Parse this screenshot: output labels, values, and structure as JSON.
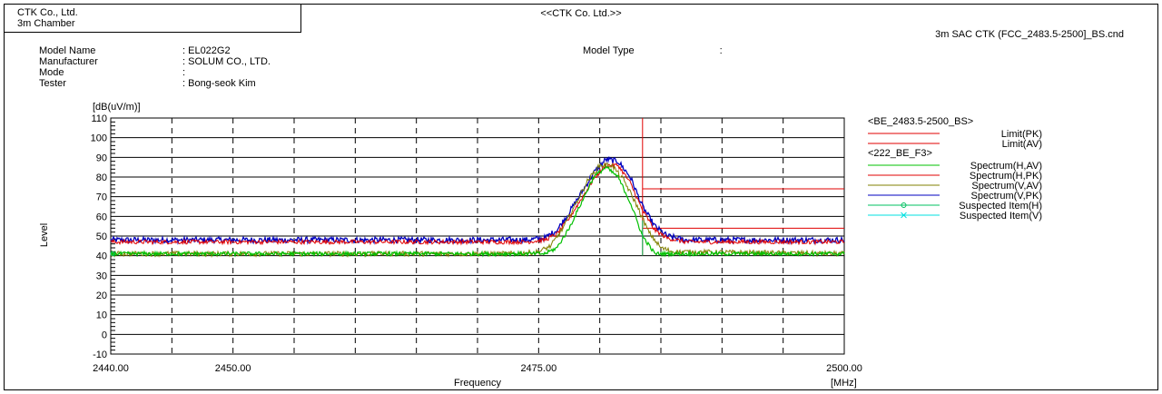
{
  "header": {
    "company": "CTK Co., Ltd.",
    "chamber": "3m Chamber",
    "title": "<<CTK Co. Ltd.>>",
    "file": "3m SAC CTK (FCC_2483.5-2500]_BS.cnd"
  },
  "info": {
    "rows": [
      {
        "label": "Model Name",
        "value": ": EL022G2"
      },
      {
        "label": "Manufacturer",
        "value": ": SOLUM CO., LTD."
      },
      {
        "label": "Mode",
        "value": ":"
      },
      {
        "label": "Tester",
        "value": ": Bong-seok Kim"
      }
    ],
    "model_type_label": "Model Type",
    "model_type_value": ":"
  },
  "colors": {
    "limit": "#e00000",
    "spectrum_h_av": "#00c000",
    "spectrum_h_pk": "#e00000",
    "spectrum_v_av": "#808000",
    "spectrum_v_pk": "#0000c0",
    "suspected_h": "#00c060",
    "suspected_v": "#00e0e0"
  },
  "chart_data": {
    "type": "line",
    "xlabel": "Frequency",
    "x_unit": "[MHz]",
    "ylabel": "Level",
    "y_unit": "[dB(uV/m)]",
    "xlim": [
      2440,
      2500
    ],
    "ylim": [
      -10,
      110
    ],
    "x_tick_labels": [
      {
        "value": 2440,
        "label": "2440.00"
      },
      {
        "value": 2450,
        "label": "2450.00"
      },
      {
        "value": 2475,
        "label": "2475.00"
      },
      {
        "value": 2500,
        "label": "2500.00"
      }
    ],
    "y_ticks": [
      -10,
      0,
      10,
      20,
      30,
      40,
      50,
      60,
      70,
      80,
      90,
      100,
      110
    ],
    "grid": true,
    "legend_position": "right",
    "legend_groups": [
      {
        "title": "<BE_2483.5-2500_BS>",
        "entries": [
          "Limit(PK)",
          "Limit(AV)"
        ]
      },
      {
        "title": "<222_BE_F3>",
        "entries": [
          "Spectrum(H,AV)",
          "Spectrum(H,PK)",
          "Spectrum(V,AV)",
          "Spectrum(V,PK)",
          "Suspected Item(H)",
          "Suspected Item(V)"
        ]
      }
    ],
    "series": [
      {
        "name": "Limit(PK)",
        "x": [
          2483.5,
          2500
        ],
        "y": [
          74,
          74
        ]
      },
      {
        "name": "Limit(AV)",
        "x": [
          2483.5,
          2500
        ],
        "y": [
          54,
          54
        ]
      },
      {
        "name": "Spectrum(V,PK)",
        "x": [
          2440,
          2474,
          2475.5,
          2476.5,
          2477.5,
          2478.5,
          2479.5,
          2480.5,
          2481.5,
          2482.5,
          2483.5,
          2484.5,
          2485.5,
          2487,
          2500
        ],
        "y": [
          48,
          48,
          49,
          53,
          62,
          72,
          82,
          89,
          88,
          80,
          65,
          55,
          50,
          48,
          48
        ]
      },
      {
        "name": "Spectrum(H,PK)",
        "x": [
          2440,
          2474,
          2475.5,
          2476.5,
          2477.5,
          2478.5,
          2479.5,
          2480.5,
          2481.5,
          2482.5,
          2483.5,
          2484.5,
          2485.5,
          2487,
          2500
        ],
        "y": [
          47,
          47,
          48,
          51,
          59,
          69,
          79,
          86,
          86,
          77,
          63,
          53,
          49,
          47,
          47
        ]
      },
      {
        "name": "Spectrum(V,AV)",
        "x": [
          2440,
          2473,
          2475,
          2476,
          2477,
          2478,
          2479,
          2480,
          2481,
          2482,
          2483,
          2484,
          2485,
          2486,
          2500
        ],
        "y": [
          41,
          41,
          42,
          45,
          54,
          66,
          78,
          86,
          86,
          78,
          66,
          52,
          44,
          42,
          41
        ]
      },
      {
        "name": "Spectrum(H,AV)",
        "x": [
          2440,
          2475.5,
          2476.5,
          2477.5,
          2478.5,
          2479.5,
          2480.5,
          2481.5,
          2482.5,
          2483.5,
          2484.5,
          2500
        ],
        "y": [
          41,
          41,
          44,
          54,
          67,
          80,
          85,
          80,
          67,
          50,
          41,
          41
        ]
      }
    ]
  }
}
